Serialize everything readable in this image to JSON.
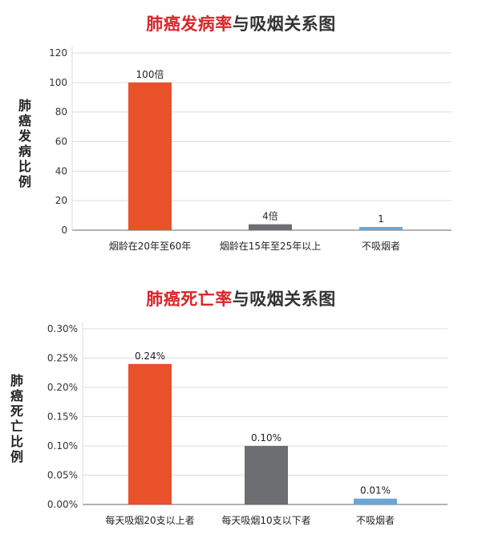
{
  "chart_data": [
    {
      "type": "bar",
      "title_highlight": "肺癌发病率",
      "title_rest": "与吸烟关系图",
      "ylabel": "肺癌发病比例",
      "categories": [
        "烟龄在20年至60年",
        "烟龄在15年至25年以上",
        "不吸烟者"
      ],
      "values": [
        100,
        4,
        1
      ],
      "data_labels": [
        "100倍",
        "4倍",
        "1"
      ],
      "yticks": [
        "0",
        "20",
        "40",
        "60",
        "80",
        "100",
        "120"
      ],
      "ylim": [
        0,
        120
      ],
      "grid": true,
      "colors": [
        "#e8512a",
        "#6d6e71",
        "#6aa6d8"
      ]
    },
    {
      "type": "bar",
      "title_highlight": "肺癌死亡率",
      "title_rest": "与吸烟关系图",
      "ylabel": "肺癌死亡比例",
      "categories": [
        "每天吸烟20支以上者",
        "每天吸烟10支以下者",
        "不吸烟者"
      ],
      "values": [
        0.24,
        0.1,
        0.01
      ],
      "data_labels": [
        "0.24%",
        "0.10%",
        "0.01%"
      ],
      "yticks": [
        "0.00%",
        "0.05%",
        "0.10%",
        "0.15%",
        "0.20%",
        "0.25%",
        "0.30%"
      ],
      "ylim": [
        0,
        0.3
      ],
      "grid": true,
      "colors": [
        "#e8512a",
        "#6d6e71",
        "#6aa6d8"
      ]
    }
  ]
}
